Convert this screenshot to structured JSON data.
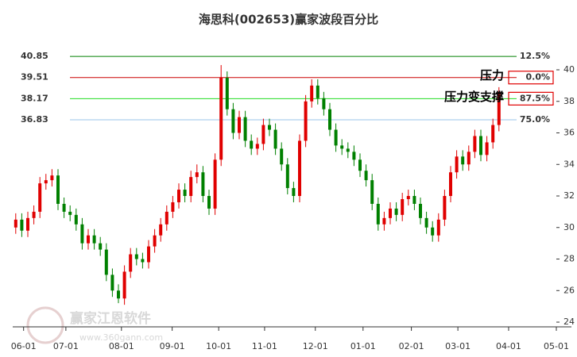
{
  "chart_data": {
    "type": "candlestick",
    "title": "海思科(002653)赢家波段百分比",
    "up_color": "#e00000",
    "down_color": "#008000",
    "open": [
      30.0,
      30.5,
      29.8,
      30.6,
      31.0,
      32.8,
      33.0,
      33.3,
      31.5,
      31.0,
      30.8,
      30.2,
      29.0,
      29.5,
      29.0,
      28.6,
      27.0,
      26.0,
      25.5,
      27.2,
      28.3,
      28.0,
      27.8,
      28.8,
      29.5,
      30.2,
      31.0,
      31.6,
      32.4,
      32.0,
      33.2,
      33.5,
      32.0,
      31.2,
      34.3,
      39.5,
      37.5,
      36.0,
      37.0,
      35.5,
      35.0,
      35.3,
      36.5,
      36.2,
      35.0,
      34.0,
      32.5,
      32.0,
      35.5,
      38.0,
      39.0,
      38.2,
      37.5,
      36.2,
      35.2,
      35.0,
      34.8,
      34.3,
      33.6,
      33.0,
      31.5,
      30.2,
      30.6,
      31.2,
      30.8,
      31.8,
      32.0,
      31.5,
      30.6,
      30.0,
      29.5,
      30.5,
      32.0,
      33.5,
      34.5,
      34.0,
      34.8,
      35.8,
      34.6,
      35.4,
      36.5
    ],
    "high": [
      30.9,
      30.9,
      31.0,
      31.4,
      33.2,
      33.4,
      33.7,
      33.7,
      31.9,
      31.4,
      31.2,
      30.6,
      29.9,
      29.9,
      29.4,
      29.0,
      27.4,
      26.4,
      27.6,
      28.7,
      28.7,
      28.4,
      29.2,
      29.9,
      30.6,
      31.4,
      32.0,
      32.8,
      32.8,
      33.6,
      34.0,
      33.9,
      32.4,
      34.7,
      40.3,
      39.9,
      37.9,
      37.4,
      37.4,
      35.9,
      35.7,
      36.9,
      36.9,
      36.6,
      35.4,
      34.4,
      32.9,
      35.9,
      38.4,
      39.4,
      39.4,
      38.6,
      37.9,
      36.6,
      35.6,
      35.4,
      35.2,
      34.7,
      34.0,
      33.4,
      31.9,
      31.0,
      31.6,
      31.6,
      32.2,
      32.4,
      32.4,
      31.9,
      31.0,
      30.4,
      30.9,
      32.4,
      33.9,
      34.9,
      34.9,
      35.2,
      36.2,
      36.2,
      35.8,
      36.9,
      38.9
    ],
    "low": [
      29.6,
      29.4,
      29.4,
      30.2,
      30.6,
      32.4,
      32.6,
      31.1,
      30.6,
      30.4,
      29.8,
      28.6,
      28.6,
      28.6,
      28.2,
      26.6,
      25.6,
      25.2,
      25.1,
      26.8,
      27.6,
      27.4,
      27.4,
      28.4,
      29.1,
      29.8,
      30.6,
      31.2,
      31.6,
      31.6,
      32.8,
      31.6,
      30.8,
      30.8,
      33.9,
      37.1,
      35.6,
      35.6,
      35.1,
      34.6,
      34.6,
      34.9,
      35.8,
      34.6,
      33.6,
      32.1,
      31.6,
      31.6,
      35.1,
      37.6,
      37.8,
      37.1,
      35.8,
      34.8,
      34.6,
      34.4,
      33.9,
      33.2,
      32.6,
      31.1,
      29.8,
      29.8,
      30.2,
      30.4,
      30.4,
      31.4,
      31.1,
      30.2,
      29.6,
      29.1,
      29.1,
      30.1,
      31.6,
      33.1,
      33.6,
      33.6,
      34.4,
      34.2,
      34.2,
      35.0,
      36.1
    ],
    "close": [
      30.5,
      29.8,
      30.6,
      31.0,
      32.8,
      33.0,
      33.3,
      31.5,
      31.0,
      30.8,
      30.2,
      29.0,
      29.5,
      29.0,
      28.6,
      27.0,
      26.0,
      25.5,
      27.2,
      28.3,
      28.0,
      27.8,
      28.8,
      29.5,
      30.2,
      31.0,
      31.6,
      32.4,
      32.0,
      33.2,
      33.5,
      32.0,
      31.2,
      34.3,
      39.5,
      37.5,
      36.0,
      37.0,
      35.5,
      35.0,
      35.3,
      36.5,
      36.2,
      35.0,
      34.0,
      32.5,
      32.0,
      35.5,
      38.0,
      39.0,
      38.2,
      37.5,
      36.2,
      35.2,
      35.0,
      34.8,
      34.3,
      33.6,
      33.0,
      31.5,
      30.2,
      30.6,
      31.2,
      30.8,
      31.8,
      32.0,
      31.5,
      30.6,
      30.0,
      29.5,
      30.5,
      32.0,
      33.5,
      34.5,
      34.0,
      34.8,
      35.8,
      34.6,
      35.4,
      36.5,
      38.6
    ],
    "xlim": [
      -0.5,
      92
    ],
    "xticks": [
      {
        "value": 1.3,
        "label": "06-01"
      },
      {
        "value": 8.3,
        "label": "07-01"
      },
      {
        "value": 17.5,
        "label": "08-01"
      },
      {
        "value": 25.9,
        "label": "09-01"
      },
      {
        "value": 33.6,
        "label": "10-01"
      },
      {
        "value": 41.2,
        "label": "11-01"
      },
      {
        "value": 49.6,
        "label": "12-01"
      },
      {
        "value": 57.5,
        "label": "01-01"
      },
      {
        "value": 65.5,
        "label": "02-01"
      },
      {
        "value": 73.2,
        "label": "03-01"
      },
      {
        "value": 81.6,
        "label": "04-01"
      },
      {
        "value": 89.5,
        "label": "05-01"
      }
    ],
    "ylim": [
      23.7,
      41.66
    ],
    "yticks": [
      24,
      26,
      28,
      30,
      32,
      34,
      36,
      38,
      40
    ],
    "levels": [
      {
        "value": 40.85,
        "percent": 12.5,
        "percent_label": "12.5%",
        "color": "#008000",
        "boxed": false
      },
      {
        "value": 39.51,
        "percent": 0.0,
        "percent_label": "0.0%",
        "color": "#cc0000",
        "boxed": true
      },
      {
        "value": 38.17,
        "percent": 87.5,
        "percent_label": "87.5%",
        "color": "#22dd22",
        "boxed": true
      },
      {
        "value": 36.83,
        "percent": 75.0,
        "percent_label": "75.0%",
        "color": "#99c4e8",
        "boxed": false
      }
    ],
    "annotations": [
      {
        "text": "压力",
        "level": 1
      },
      {
        "text": "压力变支撑",
        "level": 2
      }
    ],
    "watermark": {
      "name": "赢家江恩软件",
      "url": "www.360gann.com"
    }
  }
}
